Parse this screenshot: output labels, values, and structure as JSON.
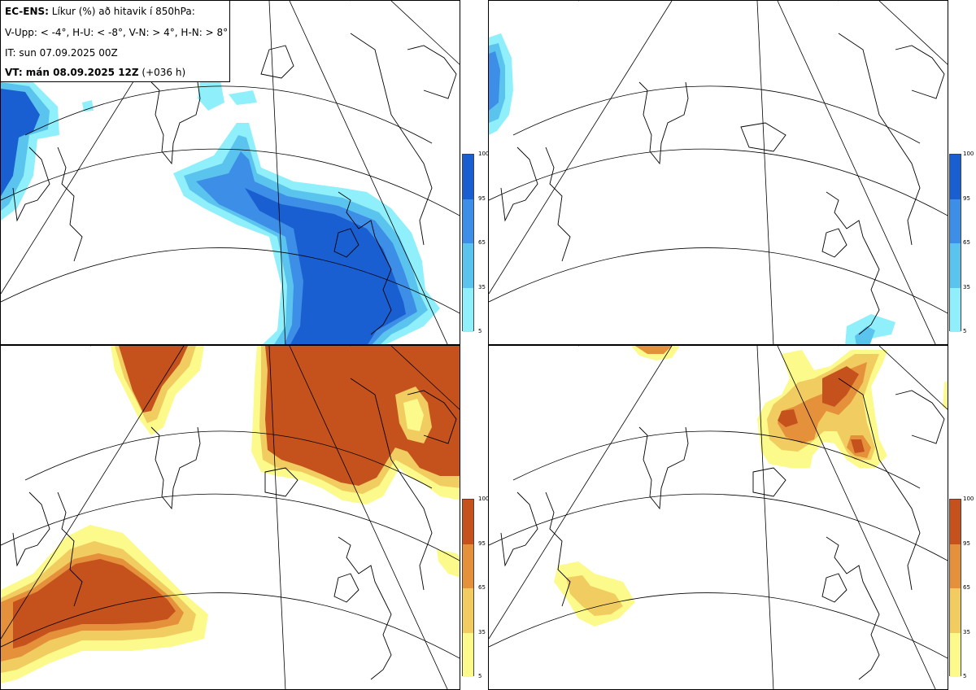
{
  "header": {
    "model": "EC-ENS:",
    "title": " Líkur (%) að hitavik í 850hPa:",
    "categories": "V-Upp: < -4°, H-U: < -8°, V-N: > 4°, H-N: > 8°",
    "issue_time": "IT: sun 07.09.2025 00Z",
    "valid_time": "VT: mán 08.09.2025 12Z",
    "lead_time": " (+036 h)"
  },
  "colorbars": {
    "cold": {
      "ticks": [
        "100",
        "95",
        "65",
        "35",
        "5"
      ],
      "colors": [
        "#1a5fd1",
        "#3d8ee6",
        "#5bc4ee",
        "#8ff0fb"
      ]
    },
    "warm": {
      "ticks": [
        "100",
        "95",
        "65",
        "35",
        "5"
      ],
      "colors": [
        "#c5521d",
        "#e5903a",
        "#f1cc60",
        "#fbfa8a"
      ]
    }
  },
  "panels": [
    {
      "id": "cold-moderate",
      "palette": "cold"
    },
    {
      "id": "cold-strong",
      "palette": "cold"
    },
    {
      "id": "warm-moderate",
      "palette": "warm"
    },
    {
      "id": "warm-strong",
      "palette": "warm"
    }
  ]
}
